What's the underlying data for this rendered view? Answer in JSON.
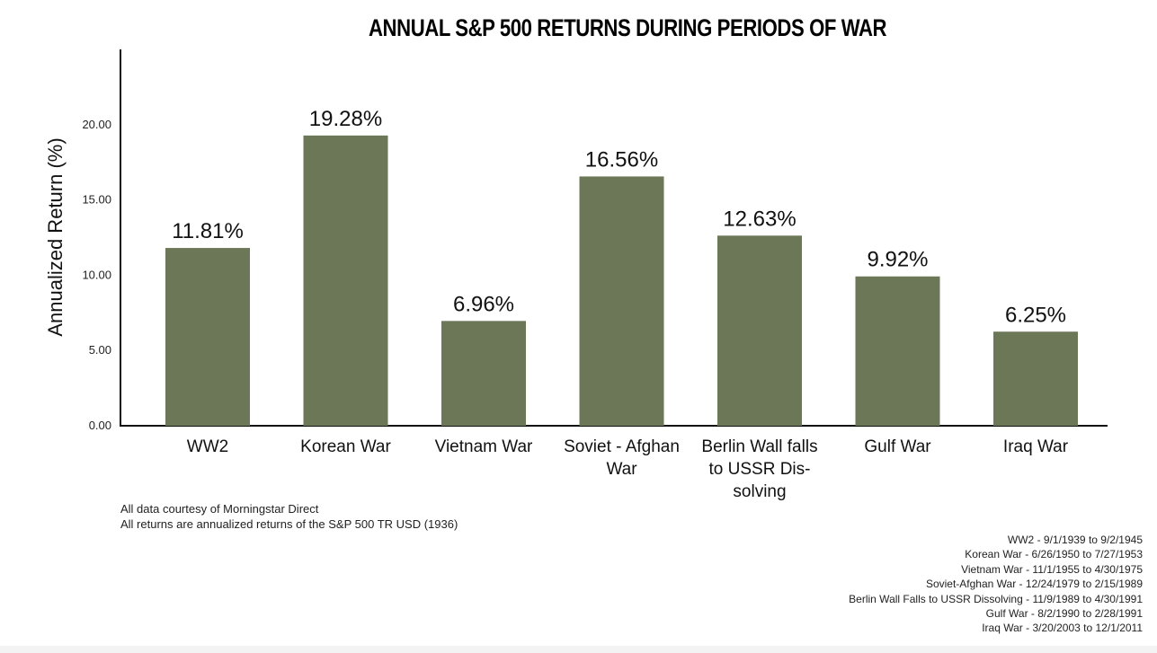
{
  "chart_data": {
    "type": "bar",
    "title": "ANNUAL S&P 500 RETURNS DURING PERIODS OF WAR",
    "xlabel": "",
    "ylabel": "Annualized Return (%)",
    "ylim": [
      0,
      25
    ],
    "yticks": [
      0,
      5,
      10,
      15,
      20
    ],
    "ytick_labels": [
      "0.00",
      "5.00",
      "10.00",
      "15.00",
      "20.00"
    ],
    "grid": false,
    "bar_color": "#6b7756",
    "categories": [
      [
        "WW2"
      ],
      [
        "Korean War"
      ],
      [
        "Vietnam War"
      ],
      [
        "Soviet - Afghan",
        "War"
      ],
      [
        "Berlin Wall falls",
        "to USSR Dis-",
        "solving"
      ],
      [
        "Gulf War"
      ],
      [
        "Iraq War"
      ]
    ],
    "values": [
      11.81,
      19.28,
      6.96,
      16.56,
      12.63,
      9.92,
      6.25
    ],
    "data_labels": [
      "11.81%",
      "19.28%",
      "6.96%",
      "16.56%",
      "12.63%",
      "9.92%",
      "6.25%"
    ]
  },
  "notes": [
    "All data courtesy of Morningstar Direct",
    "All returns are annualized returns of the S&P 500 TR USD (1936)"
  ],
  "periods": [
    "WW2 - 9/1/1939 to 9/2/1945",
    "Korean War - 6/26/1950 to 7/27/1953",
    "Vietnam War - 11/1/1955 to 4/30/1975",
    "Soviet-Afghan War - 12/24/1979 to 2/15/1989",
    "Berlin Wall Falls to USSR Dissolving - 11/9/1989 to 4/30/1991",
    "Gulf War - 8/2/1990 to 2/28/1991",
    "Iraq War - 3/20/2003 to 12/1/2011"
  ]
}
